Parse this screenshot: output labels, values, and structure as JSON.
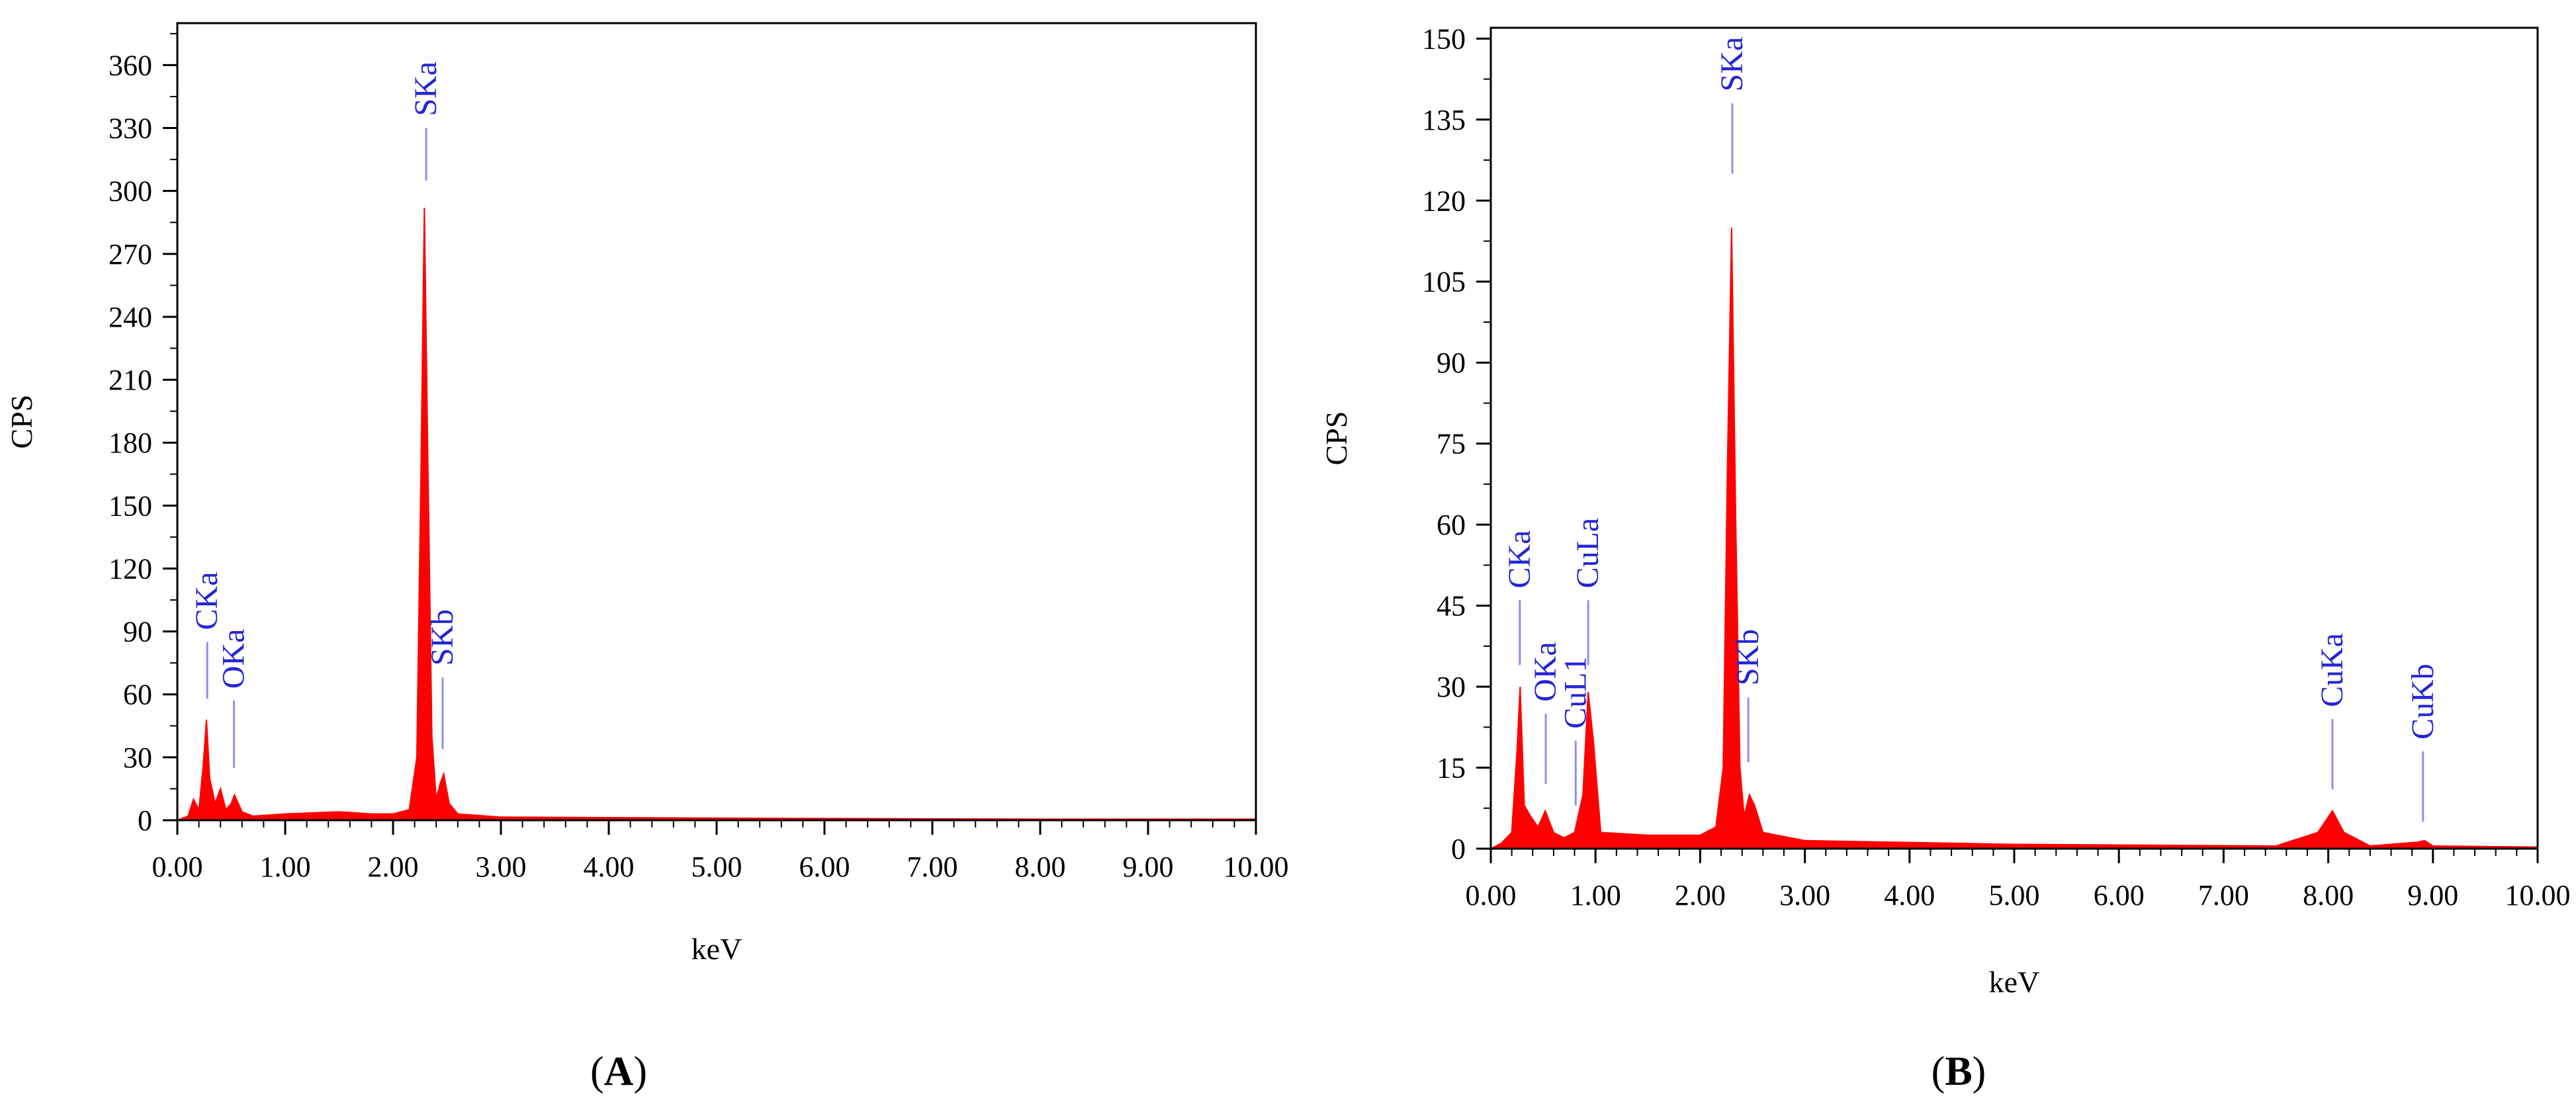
{
  "colors": {
    "spectrum": "#ff0000",
    "peak_label": "#2424d6",
    "marker_line": "#8f8ff0",
    "axis": "#000000"
  },
  "chart_data": [
    {
      "type": "area",
      "panel_label": "A",
      "xlabel": "keV",
      "ylabel": "CPS",
      "xlim": [
        0,
        10
      ],
      "ylim": [
        0,
        380
      ],
      "x_ticks": [
        "0.00",
        "1.00",
        "2.00",
        "3.00",
        "4.00",
        "5.00",
        "6.00",
        "7.00",
        "8.00",
        "9.00",
        "10.00"
      ],
      "y_ticks": [
        0,
        30,
        60,
        90,
        120,
        150,
        180,
        210,
        240,
        270,
        300,
        330,
        360
      ],
      "grid": false,
      "legend": "none",
      "spectrum": {
        "x": [
          0.0,
          0.1,
          0.15,
          0.2,
          0.24,
          0.27,
          0.3,
          0.35,
          0.4,
          0.45,
          0.5,
          0.53,
          0.6,
          0.7,
          1.0,
          1.5,
          1.8,
          2.0,
          2.15,
          2.22,
          2.26,
          2.29,
          2.32,
          2.36,
          2.4,
          2.44,
          2.47,
          2.52,
          2.6,
          3.0,
          5.0,
          8.0,
          10.0
        ],
        "y": [
          0,
          2,
          10,
          5,
          26,
          48,
          20,
          8,
          15,
          5,
          8,
          12,
          4,
          2,
          3,
          4,
          3,
          3,
          5,
          30,
          170,
          292,
          180,
          40,
          10,
          18,
          22,
          8,
          3,
          1.5,
          1,
          0.5,
          0.5
        ]
      },
      "peak_labels": [
        {
          "label": "CKa",
          "energy": 0.277,
          "line_top": 85,
          "line_bottom": 58
        },
        {
          "label": "OKa",
          "energy": 0.525,
          "line_top": 57,
          "line_bottom": 25
        },
        {
          "label": "SKa",
          "energy": 2.307,
          "line_top": 330,
          "line_bottom": 305
        },
        {
          "label": "SKb",
          "energy": 2.46,
          "line_top": 68,
          "line_bottom": 34
        }
      ]
    },
    {
      "type": "area",
      "panel_label": "B",
      "xlabel": "keV",
      "ylabel": "CPS",
      "xlim": [
        0,
        10
      ],
      "ylim": [
        0,
        152
      ],
      "x_ticks": [
        "0.00",
        "1.00",
        "2.00",
        "3.00",
        "4.00",
        "5.00",
        "6.00",
        "7.00",
        "8.00",
        "9.00",
        "10.00"
      ],
      "y_ticks": [
        0,
        15,
        30,
        45,
        60,
        75,
        90,
        105,
        120,
        135,
        150
      ],
      "grid": false,
      "legend": "none",
      "spectrum": {
        "x": [
          0.0,
          0.1,
          0.2,
          0.25,
          0.28,
          0.32,
          0.38,
          0.45,
          0.52,
          0.6,
          0.7,
          0.8,
          0.88,
          0.93,
          0.98,
          1.05,
          1.5,
          2.0,
          2.15,
          2.22,
          2.26,
          2.3,
          2.34,
          2.38,
          2.42,
          2.47,
          2.52,
          2.6,
          3.0,
          5.0,
          7.5,
          7.9,
          8.04,
          8.15,
          8.4,
          8.85,
          8.92,
          9.0,
          10.0
        ],
        "y": [
          0,
          1,
          3,
          18,
          30,
          8,
          6,
          4,
          7,
          3,
          2,
          3,
          10,
          29,
          20,
          3,
          2.5,
          2.5,
          4,
          15,
          70,
          115,
          60,
          15,
          6,
          10,
          8,
          3,
          1.5,
          0.8,
          0.5,
          3,
          7,
          3,
          0.5,
          1.2,
          1.5,
          0.5,
          0.3
        ]
      },
      "peak_labels": [
        {
          "label": "CKa",
          "energy": 0.277,
          "line_top": 46,
          "line_bottom": 34
        },
        {
          "label": "OKa",
          "energy": 0.525,
          "line_top": 25,
          "line_bottom": 12
        },
        {
          "label": "CuL1",
          "energy": 0.811,
          "line_top": 20,
          "line_bottom": 8
        },
        {
          "label": "CuLa",
          "energy": 0.93,
          "line_top": 46,
          "line_bottom": 34
        },
        {
          "label": "SKa",
          "energy": 2.307,
          "line_top": 138,
          "line_bottom": 125
        },
        {
          "label": "SKb",
          "energy": 2.46,
          "line_top": 28,
          "line_bottom": 16
        },
        {
          "label": "CuKa",
          "energy": 8.04,
          "line_top": 24,
          "line_bottom": 11
        },
        {
          "label": "CuKb",
          "energy": 8.905,
          "line_top": 18,
          "line_bottom": 5
        }
      ]
    }
  ]
}
